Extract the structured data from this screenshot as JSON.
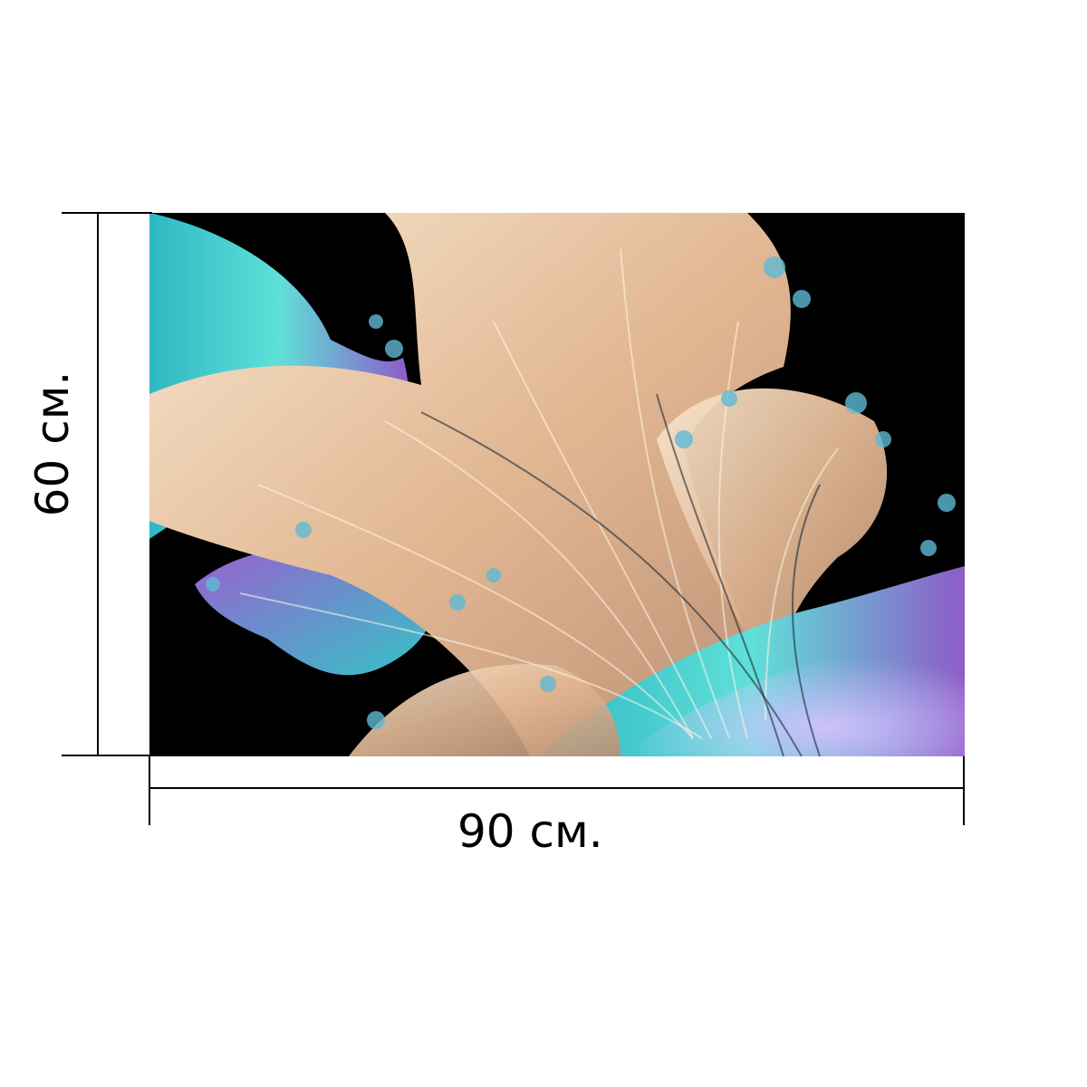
{
  "product": {
    "image_subject": "fractal-feather-print",
    "colors": {
      "background": "#000000",
      "peach": "#e8c2a0",
      "cream": "#f7e6cf",
      "turquoise": "#33c7c9",
      "violet": "#9a5fd0",
      "dim_lines": "#000000"
    }
  },
  "dimensions": {
    "width_label": "90 см.",
    "height_label": "60 см."
  }
}
